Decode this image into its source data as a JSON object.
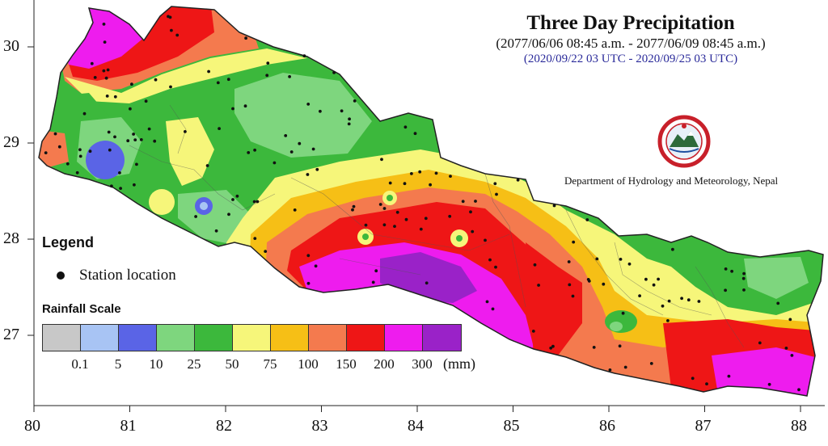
{
  "title": "Three Day Precipitation",
  "subtitle_local": "(2077/06/06 08:45 a.m. - 2077/06/09 08:45 a.m.)",
  "subtitle_utc": "(2020/09/22 03 UTC - 2020/09/25 03 UTC)",
  "department": "Department of Hydrology and Meteorology, Nepal",
  "legend": {
    "title": "Legend",
    "station_label": "Station location"
  },
  "rainfall_scale": {
    "title": "Rainfall Scale",
    "unit": "(mm)",
    "labels": [
      "0.1",
      "5",
      "10",
      "25",
      "50",
      "75",
      "100",
      "150",
      "200",
      "300"
    ],
    "colors": [
      "#c8c8c8",
      "#a8c4f4",
      "#5a64e6",
      "#7ed67e",
      "#3cb83c",
      "#f6f67a",
      "#f6bf16",
      "#f47a4e",
      "#ee1616",
      "#ee1cee",
      "#9a22c8"
    ]
  },
  "axes": {
    "x_ticks": [
      "80",
      "81",
      "82",
      "83",
      "84",
      "85",
      "86",
      "87",
      "88"
    ],
    "y_ticks": [
      "30",
      "29",
      "28",
      "27"
    ]
  },
  "map": {
    "country": "Nepal",
    "colors": {
      "magenta": "#ee1cee",
      "purple": "#9a22c8",
      "red": "#ee1616",
      "orange": "#f47a4e",
      "amber": "#f6bf16",
      "yellow": "#f6f67a",
      "green": "#3cb83c",
      "light_green": "#7ed67e",
      "blue": "#5a64e6",
      "light_blue": "#a8c4f4"
    }
  }
}
